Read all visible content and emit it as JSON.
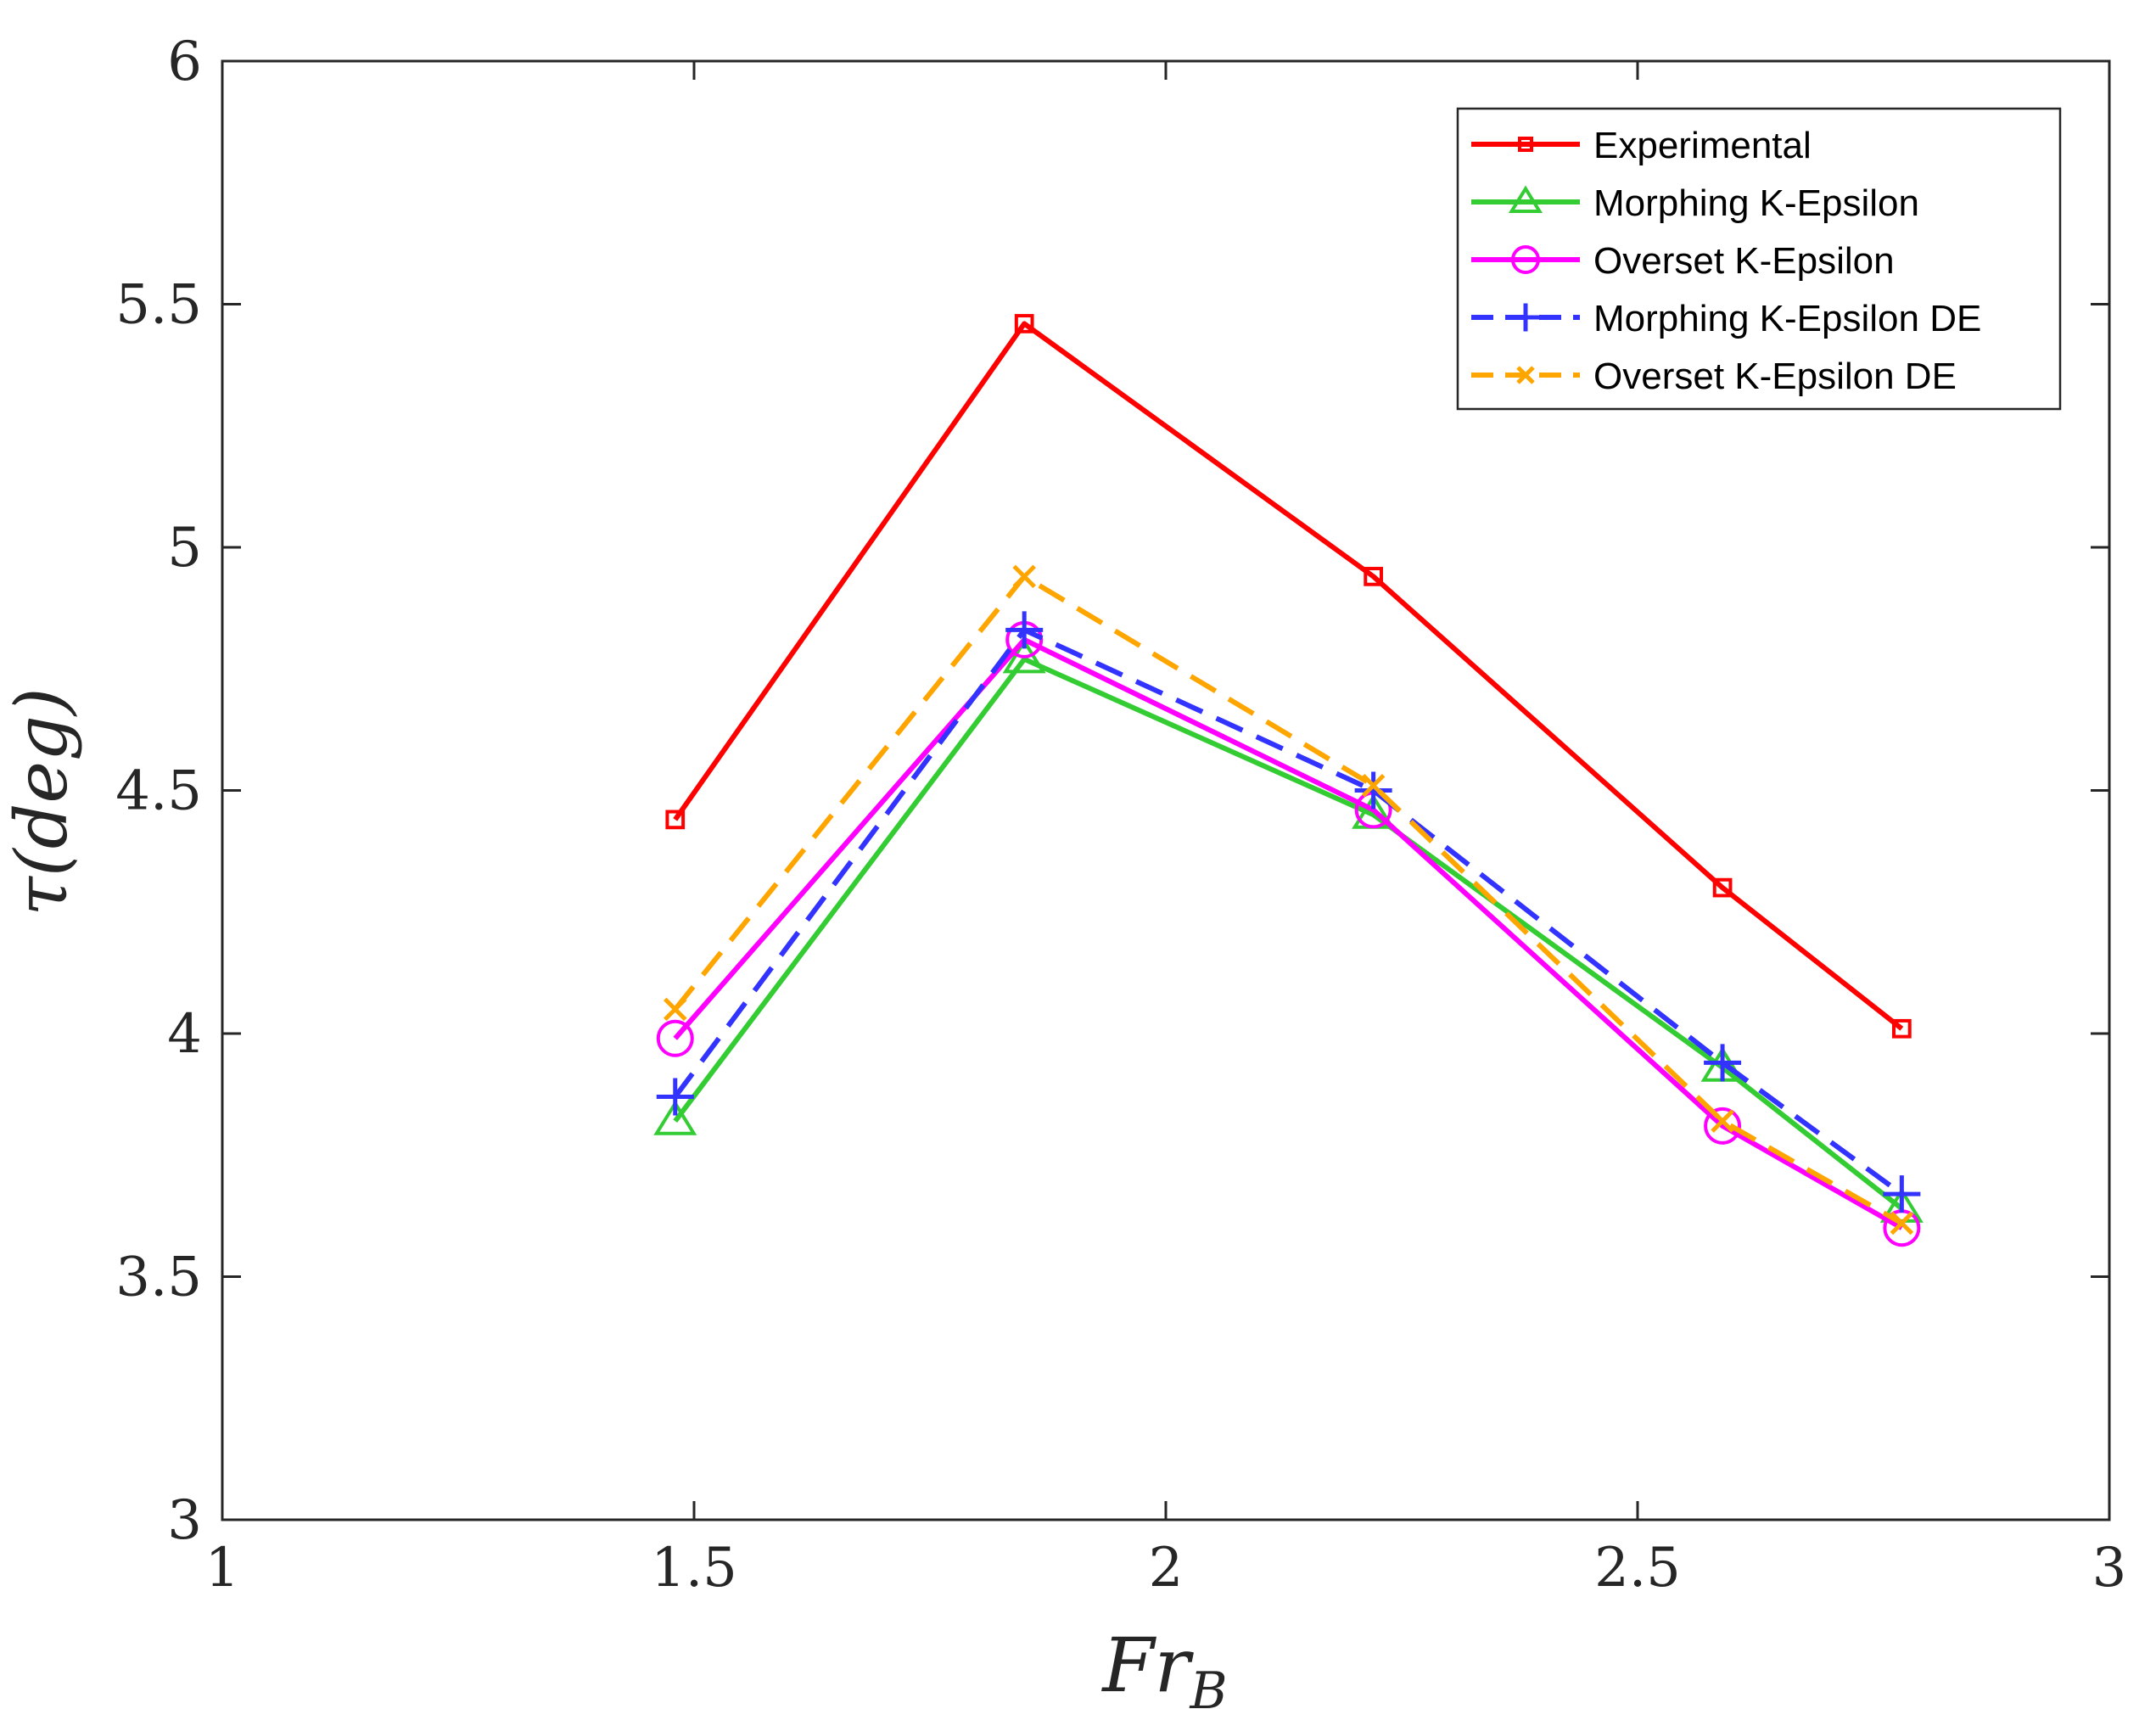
{
  "chart_data": {
    "type": "line",
    "title": "",
    "xlabel": "Fr",
    "xlabel_sub": "B",
    "ylabel": "τ(deg)",
    "xlim": [
      1,
      3
    ],
    "ylim": [
      3,
      6
    ],
    "xticks": [
      1,
      1.5,
      2,
      2.5,
      3
    ],
    "xtick_labels": [
      "1",
      "1.5",
      "2",
      "2.5",
      "3"
    ],
    "yticks": [
      3,
      3.5,
      4,
      4.5,
      5,
      5.5,
      6
    ],
    "ytick_labels": [
      "3",
      "3.5",
      "4",
      "4.5",
      "5",
      "5.5",
      "6"
    ],
    "grid": false,
    "legend_position": "top-right",
    "x": [
      1.48,
      1.85,
      2.22,
      2.59,
      2.78
    ],
    "series": [
      {
        "name": "Experimental",
        "color": "#ff0000",
        "marker": "square",
        "dash": "solid",
        "values": [
          4.44,
          5.46,
          4.94,
          4.3,
          4.01
        ]
      },
      {
        "name": "Morphing K-Epsilon",
        "color": "#33cc33",
        "marker": "triangle",
        "dash": "solid",
        "values": [
          3.82,
          4.77,
          4.45,
          3.93,
          3.64
        ]
      },
      {
        "name": "Overset K-Epsilon",
        "color": "#ff00ff",
        "marker": "circle",
        "dash": "solid",
        "values": [
          3.99,
          4.81,
          4.46,
          3.81,
          3.6
        ]
      },
      {
        "name": "Morphing K-Epsilon DE",
        "color": "#3333ff",
        "marker": "plus",
        "dash": "dashed",
        "values": [
          3.87,
          4.83,
          4.5,
          3.94,
          3.67
        ]
      },
      {
        "name": "Overset K-Epsilon DE",
        "color": "#ffa500",
        "marker": "x",
        "dash": "dashed",
        "values": [
          4.05,
          4.94,
          4.51,
          3.82,
          3.61
        ]
      }
    ]
  }
}
